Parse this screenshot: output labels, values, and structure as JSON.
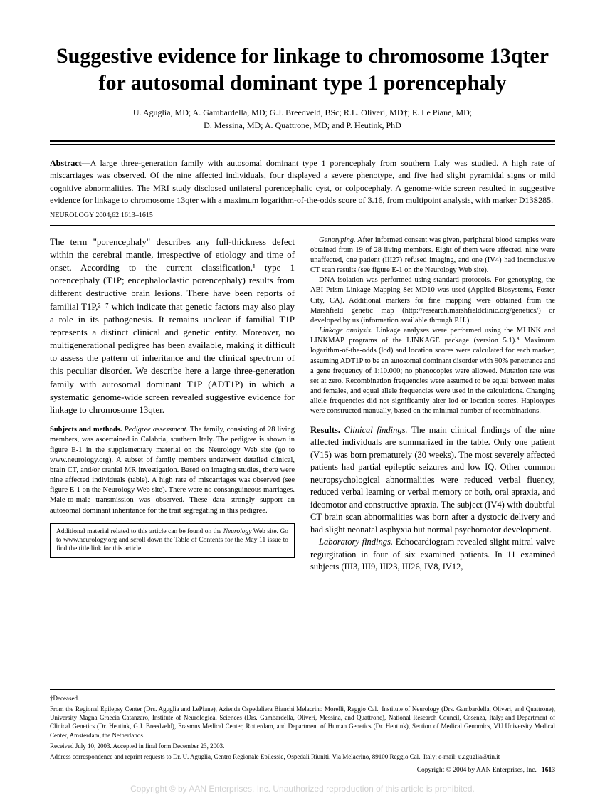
{
  "title": "Suggestive evidence for linkage to chromosome 13qter for autosomal dominant type 1 porencephaly",
  "authors_line1": "U. Aguglia, MD; A. Gambardella, MD; G.J. Breedveld, BSc; R.L. Oliveri, MD†; E. Le Piane, MD;",
  "authors_line2": "D. Messina, MD; A. Quattrone, MD; and P. Heutink, PhD",
  "abstract_label": "Abstract—",
  "abstract": "A large three-generation family with autosomal dominant type 1 porencephaly from southern Italy was studied. A high rate of miscarriages was observed. Of the nine affected individuals, four displayed a severe phenotype, and five had slight pyramidal signs or mild cognitive abnormalities. The MRI study disclosed unilateral porencephalic cyst, or colpocephaly. A genome-wide screen resulted in suggestive evidence for linkage to chromosome 13qter with a maximum logarithm-of-the-odds score of 3.16, from multipoint analysis, with marker D13S285.",
  "citation": "NEUROLOGY 2004;62:1613–1615",
  "intro": "The term \"porencephaly\" describes any full-thickness defect within the cerebral mantle, irrespective of etiology and time of onset. According to the current classification,¹ type 1 porencephaly (T1P; encephaloclastic porencephaly) results from different destructive brain lesions. There have been reports of familial T1P,²⁻⁷ which indicate that genetic factors may also play a role in its pathogenesis. It remains unclear if familial T1P represents a distinct clinical and genetic entity. Moreover, no multigenerational pedigree has been available, making it difficult to assess the pattern of inheritance and the clinical spectrum of this peculiar disorder. We describe here a large three-generation family with autosomal dominant T1P (ADT1P) in which a systematic genome-wide screen revealed suggestive evidence for linkage to chromosome 13qter.",
  "subjects_label": "Subjects and methods.",
  "pedigree_label": "Pedigree assessment.",
  "pedigree": "The family, consisting of 28 living members, was ascertained in Calabria, southern Italy. The pedigree is shown in figure E-1 in the supplementary material on the Neurology Web site (go to www.neurology.org). A subset of family members underwent detailed clinical, brain CT, and/or cranial MR investigation. Based on imaging studies, there were nine affected individuals (table). A high rate of miscarriages was observed (see figure E-1 on the Neurology Web site). There were no consanguineous marriages. Male-to-male transmission was observed. These data strongly support an autosomal dominant inheritance for the trait segregating in this pedigree.",
  "box_note": "Additional material related to this article can be found on the Neurology Web site. Go to www.neurology.org and scroll down the Table of Contents for the May 11 issue to find the title link for this article.",
  "genotyping_label": "Genotyping.",
  "genotyping_p1": "After informed consent was given, peripheral blood samples were obtained from 19 of 28 living members. Eight of them were affected, nine were unaffected, one patient (III27) refused imaging, and one (IV4) had inconclusive CT scan results (see figure E-1 on the Neurology Web site).",
  "genotyping_p2": "DNA isolation was performed using standard protocols. For genotyping, the ABI Prism Linkage Mapping Set MD10 was used (Applied Biosystems, Foster City, CA). Additional markers for fine mapping were obtained from the Marshfield genetic map (http://research.marshfieldclinic.org/genetics/) or developed by us (information available through P.H.).",
  "linkage_label": "Linkage analysis.",
  "linkage": "Linkage analyses were performed using the MLINK and LINKMAP programs of the LINKAGE package (version 5.1).⁸ Maximum logarithm-of-the-odds (lod) and location scores were calculated for each marker, assuming ADT1P to be an autosomal dominant disorder with 90% penetrance and a gene frequency of 1:10.000; no phenocopies were allowed. Mutation rate was set at zero. Recombination frequencies were assumed to be equal between males and females, and equal allele frequencies were used in the calculations. Changing allele frequencies did not significantly alter lod or location scores. Haplotypes were constructed manually, based on the minimal number of recombinations.",
  "results_label": "Results.",
  "clinical_label": "Clinical findings.",
  "clinical": "The main clinical findings of the nine affected individuals are summarized in the table. Only one patient (V15) was born prematurely (30 weeks). The most severely affected patients had partial epileptic seizures and low IQ. Other common neuropsychological abnormalities were reduced verbal fluency, reduced verbal learning or verbal memory or both, oral apraxia, and ideomotor and constructive apraxia. The subject (IV4) with doubtful CT brain scan abnormalities was born after a dystocic delivery and had slight neonatal asphyxia but normal psychomotor development.",
  "lab_label": "Laboratory findings.",
  "lab": "Echocardiogram revealed slight mitral valve regurgitation in four of six examined patients. In 11 examined subjects (III3, III9, III23, III26, IV8, IV12,",
  "deceased": "†Deceased.",
  "affiliations": "From the Regional Epilepsy Center (Drs. Aguglia and LePiane), Azienda Ospedaliera Bianchi Melacrino Morelli, Reggio Cal., Institute of Neurology (Drs. Gambardella, Oliveri, and Quattrone), University Magna Graecia Catanzaro, Institute of Neurological Sciences (Drs. Gambardella, Oliveri, Messina, and Quattrone), National Research Council, Cosenza, Italy; and Department of Clinical Genetics (Dr. Heutink, G.J. Breedveld), Erasmus Medical Center, Rotterdam, and Department of Human Genetics (Dr. Heutink), Section of Medical Genomics, VU University Medical Center, Amsterdam, the Netherlands.",
  "received": "Received July 10, 2003. Accepted in final form December 23, 2003.",
  "correspondence": "Address correspondence and reprint requests to Dr. U. Aguglia, Centro Regionale Epilessie, Ospedali Riuniti, Via Melacrino, 89100 Reggio Cal., Italy; e-mail: u.aguglia@tin.it",
  "copyright": "Copyright © 2004 by AAN Enterprises, Inc.",
  "page_num": "1613",
  "watermark": "Copyright © by AAN Enterprises, Inc. Unauthorized reproduction of this article is prohibited."
}
